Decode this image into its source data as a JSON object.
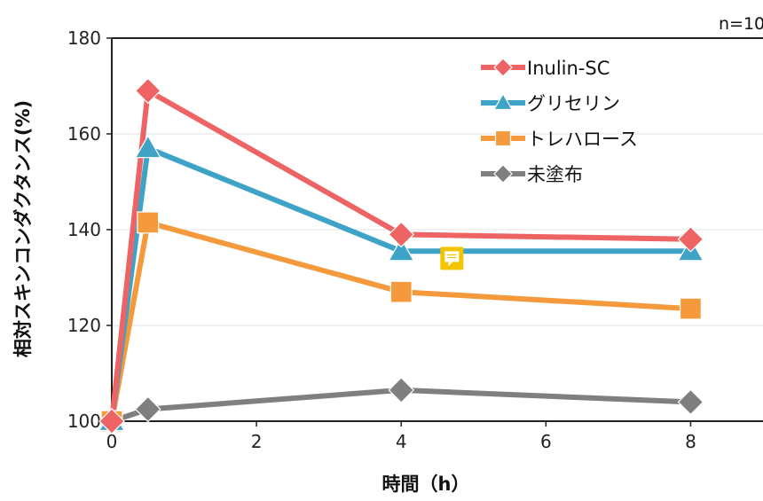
{
  "chart_data": {
    "type": "line",
    "note": "n=10",
    "xlabel": "時間（h）",
    "ylabel": "相対スキンコンダクタンス(%)",
    "xlim": [
      0,
      9
    ],
    "ylim": [
      100,
      180
    ],
    "x_ticks": [
      "0",
      "2",
      "4",
      "6",
      "8"
    ],
    "y_ticks": [
      "100",
      "120",
      "140",
      "160",
      "180"
    ],
    "grid": "horizontal",
    "legend_position": "top-right",
    "series": [
      {
        "name": "Inulin-SC",
        "color": "#ee6464",
        "marker": "diamond",
        "x": [
          0,
          0.5,
          4,
          8
        ],
        "y": [
          100,
          169,
          139,
          138
        ]
      },
      {
        "name": "グリセリン",
        "color": "#3ea3c6",
        "marker": "triangle",
        "x": [
          0,
          0.5,
          4,
          8
        ],
        "y": [
          100,
          157,
          135.5,
          135.5
        ]
      },
      {
        "name": "トレハロース",
        "color": "#f49a3c",
        "marker": "square",
        "x": [
          0,
          0.5,
          4,
          8
        ],
        "y": [
          100,
          141.5,
          127,
          123.5
        ]
      },
      {
        "name": "未塗布",
        "color": "#7f7f7f",
        "marker": "diamond",
        "x": [
          0,
          0.5,
          4,
          8
        ],
        "y": [
          100,
          102.5,
          106.5,
          104
        ]
      }
    ],
    "annotation_icon": {
      "name": "comment-icon",
      "color": "#f2c500",
      "x": 4.7,
      "y": 134
    }
  }
}
